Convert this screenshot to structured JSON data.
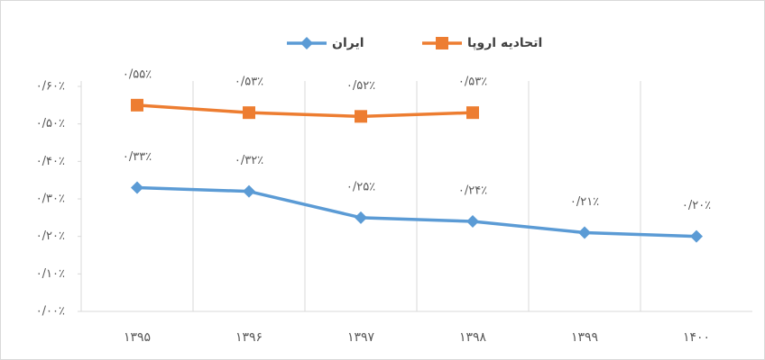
{
  "chart_data": {
    "type": "line",
    "categories": [
      "۱۳۹۵",
      "۱۳۹۶",
      "۱۳۹۷",
      "۱۳۹۸",
      "۱۳۹۹",
      "۱۴۰۰"
    ],
    "series": [
      {
        "name": "ایران",
        "color": "#5b9bd5",
        "marker": "diamond",
        "values": [
          0.33,
          0.32,
          0.25,
          0.24,
          0.21,
          0.2
        ],
        "value_labels": [
          "۰/۳۳٪",
          "۰/۳۲٪",
          "۰/۲۵٪",
          "۰/۲۴٪",
          "۰/۲۱٪",
          "۰/۲۰٪"
        ]
      },
      {
        "name": "اتحادیه اروپا",
        "color": "#ed7d31",
        "marker": "square",
        "values": [
          0.55,
          0.53,
          0.52,
          0.53,
          null,
          null
        ],
        "value_labels": [
          "۰/۵۵٪",
          "۰/۵۳٪",
          "۰/۵۲٪",
          "۰/۵۳٪",
          null,
          null
        ]
      }
    ],
    "ylim": [
      0,
      0.6
    ],
    "yticks": [
      {
        "value": 0,
        "label": "۰/۰۰٪"
      },
      {
        "value": 0.1,
        "label": "۰/۱۰٪"
      },
      {
        "value": 0.2,
        "label": "۰/۲۰٪"
      },
      {
        "value": 0.3,
        "label": "۰/۳۰٪"
      },
      {
        "value": 0.4,
        "label": "۰/۴۰٪"
      },
      {
        "value": 0.5,
        "label": "۰/۵۰٪"
      },
      {
        "value": 0.6,
        "label": "۰/۶۰٪"
      }
    ],
    "legend": "top"
  }
}
